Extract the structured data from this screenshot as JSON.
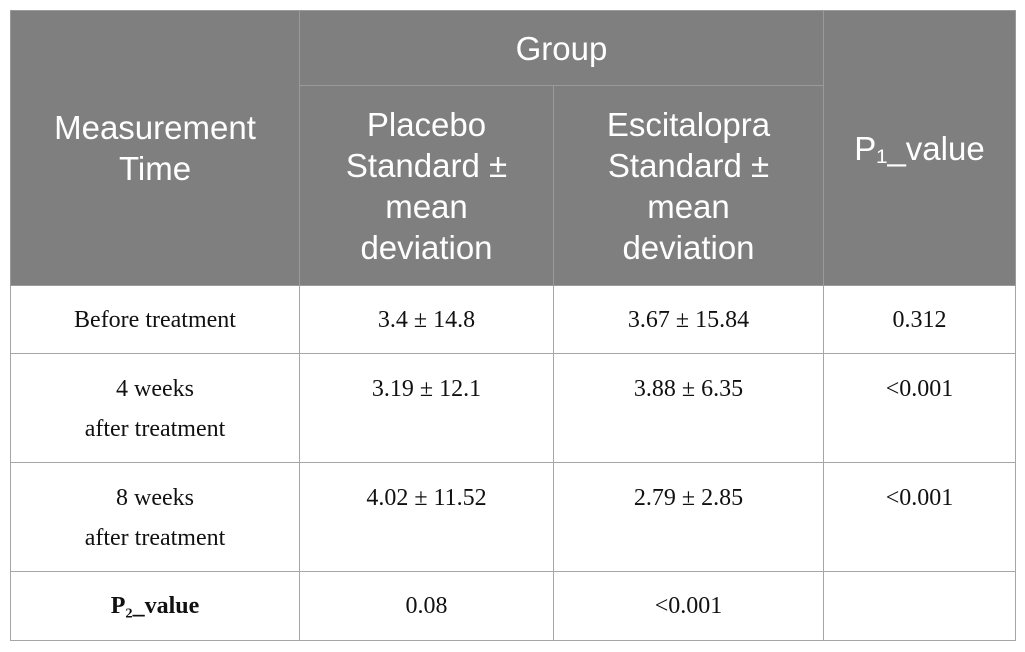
{
  "table": {
    "header": {
      "measurement_time": "Measurement\nTime",
      "group": "Group",
      "columns": [
        "Placebo\nStandard ±\nmean\ndeviation",
        "Escitalopra\nStandard ±\nmean\ndeviation"
      ],
      "p1": "P₁_value"
    },
    "rows": [
      [
        "Before treatment",
        "3.4 ± 14.8",
        "3.67 ± 15.84",
        "0.312"
      ],
      [
        "4 weeks\nafter treatment",
        "3.19 ± 12.1",
        "3.88 ± 6.35",
        "<0.001"
      ],
      [
        "8 weeks\nafter treatment",
        "4.02 ± 11.52",
        "2.79 ± 2.85",
        "<0.001"
      ]
    ],
    "footer": [
      "P₂_value",
      "0.08",
      "<0.001"
    ]
  }
}
